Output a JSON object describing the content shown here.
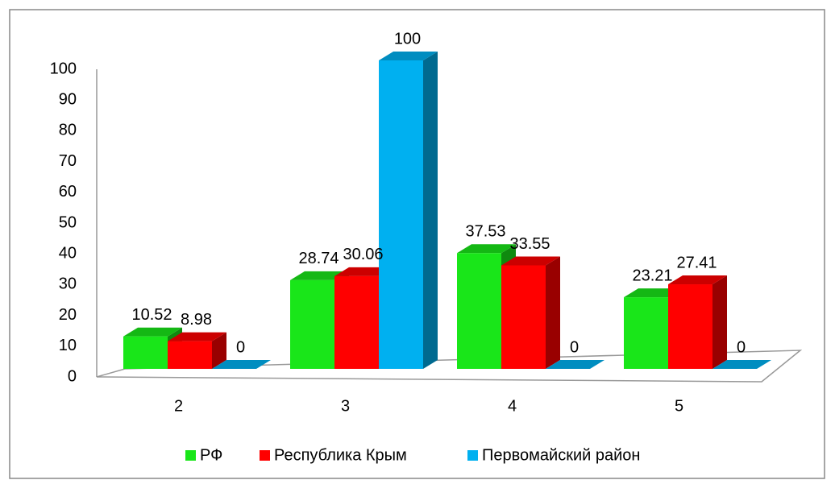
{
  "chart_data": {
    "type": "bar3d",
    "categories": [
      "2",
      "3",
      "4",
      "5"
    ],
    "series": [
      {
        "name": "РФ",
        "color": "#19e619",
        "values": [
          10.52,
          28.74,
          37.53,
          23.21
        ]
      },
      {
        "name": "Республика Крым",
        "color": "#ff0000",
        "values": [
          8.98,
          30.06,
          33.55,
          27.41
        ]
      },
      {
        "name": "Первомайский район",
        "color": "#00b0f0",
        "values": [
          0,
          100,
          0,
          0
        ]
      }
    ],
    "ylim": [
      0,
      100
    ],
    "yticks": [
      0,
      10,
      20,
      30,
      40,
      50,
      60,
      70,
      80,
      90,
      100
    ],
    "grid": false,
    "legend": "bottom"
  }
}
